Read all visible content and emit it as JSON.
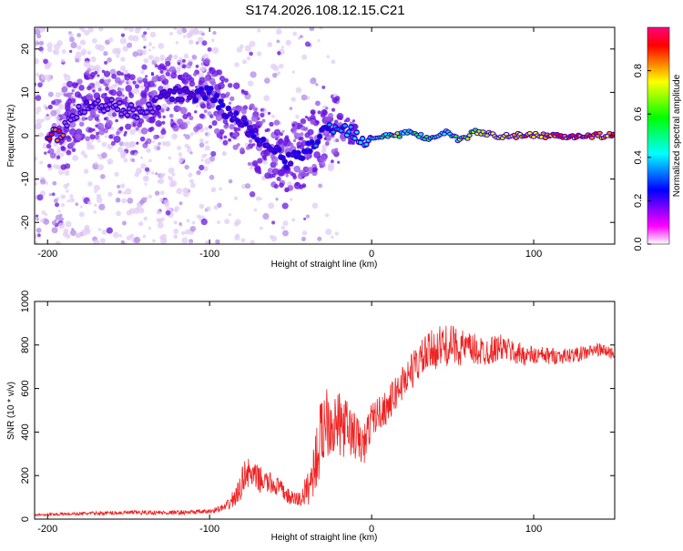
{
  "title": "S174.2026.108.12.15.C21",
  "chart_data": [
    {
      "type": "heatmap",
      "name": "spectrogram",
      "xlabel": "Height of straight line (km)",
      "ylabel": "Frequency (Hz)",
      "xlim": [
        -208,
        150
      ],
      "ylim": [
        -25,
        25
      ],
      "xticks": [
        -200,
        -100,
        0,
        100
      ],
      "xtick_labels": [
        "-200",
        "-100",
        "0",
        "100"
      ],
      "yticks": [
        -20,
        -10,
        0,
        10,
        20
      ],
      "ytick_labels": [
        "-20",
        "-10",
        "0",
        "10",
        "20"
      ],
      "colorbar": {
        "label": "Normalized spectral amplitude",
        "range": [
          0,
          1
        ],
        "ticks": [
          0.0,
          0.2,
          0.4,
          0.6,
          0.8
        ],
        "tick_labels": [
          "0.0",
          "0.2",
          "0.4",
          "0.6",
          "0.8"
        ],
        "colormap": [
          "#ffffff",
          "#e0c8f8",
          "#a060e8",
          "#5a0ad8",
          "#0000ff",
          "#00a8ff",
          "#00ffff",
          "#00ff40",
          "#b0ff00",
          "#ffff00",
          "#ff8000",
          "#ff0000",
          "#ff00a0"
        ]
      },
      "ridge": [
        {
          "x": -190,
          "y": 3,
          "amp": 0.12
        },
        {
          "x": -175,
          "y": 7,
          "amp": 0.18
        },
        {
          "x": -160,
          "y": 7,
          "amp": 0.16
        },
        {
          "x": -140,
          "y": 5,
          "amp": 0.15
        },
        {
          "x": -125,
          "y": 10,
          "amp": 0.22
        },
        {
          "x": -110,
          "y": 9,
          "amp": 0.28
        },
        {
          "x": -100,
          "y": 10,
          "amp": 0.3
        },
        {
          "x": -92,
          "y": 6,
          "amp": 0.3
        },
        {
          "x": -82,
          "y": 4,
          "amp": 0.3
        },
        {
          "x": -72,
          "y": 0,
          "amp": 0.28
        },
        {
          "x": -62,
          "y": -3,
          "amp": 0.28
        },
        {
          "x": -52,
          "y": -6,
          "amp": 0.3
        },
        {
          "x": -42,
          "y": -4,
          "amp": 0.32
        },
        {
          "x": -32,
          "y": 0,
          "amp": 0.35
        },
        {
          "x": -22,
          "y": 2,
          "amp": 0.4
        },
        {
          "x": -12,
          "y": 1,
          "amp": 0.45
        },
        {
          "x": -5,
          "y": -1,
          "amp": 0.5
        },
        {
          "x": 5,
          "y": 0,
          "amp": 0.6
        },
        {
          "x": 15,
          "y": 0,
          "amp": 0.62
        },
        {
          "x": 25,
          "y": 1,
          "amp": 0.55
        },
        {
          "x": 35,
          "y": -1,
          "amp": 0.58
        },
        {
          "x": 45,
          "y": 1,
          "amp": 0.55
        },
        {
          "x": 55,
          "y": -1,
          "amp": 0.6
        },
        {
          "x": 65,
          "y": 1,
          "amp": 0.7
        },
        {
          "x": 75,
          "y": 0,
          "amp": 0.75
        },
        {
          "x": 85,
          "y": 0,
          "amp": 0.8
        },
        {
          "x": 95,
          "y": 0,
          "amp": 0.85
        },
        {
          "x": 105,
          "y": 0,
          "amp": 0.85
        },
        {
          "x": 115,
          "y": 0,
          "amp": 0.9
        },
        {
          "x": 125,
          "y": 0,
          "amp": 0.9
        },
        {
          "x": 135,
          "y": 0,
          "amp": 0.95
        },
        {
          "x": 150,
          "y": 0,
          "amp": 0.95
        }
      ]
    },
    {
      "type": "line",
      "name": "snr",
      "xlabel": "Height of straight line (km)",
      "ylabel": "SNR (10 * v/v)",
      "xlim": [
        -208,
        150
      ],
      "ylim": [
        0,
        1000
      ],
      "xticks": [
        -200,
        -100,
        0,
        100
      ],
      "xtick_labels": [
        "-200",
        "-100",
        "0",
        "100"
      ],
      "yticks": [
        0,
        200,
        400,
        600,
        800,
        1000
      ],
      "ytick_labels": [
        "0",
        "200",
        "400",
        "600",
        "800",
        "1000"
      ],
      "color": "#ee2222",
      "x": [
        -208,
        -180,
        -150,
        -120,
        -100,
        -90,
        -82,
        -78,
        -72,
        -65,
        -58,
        -50,
        -44,
        -38,
        -33,
        -28,
        -24,
        -20,
        -15,
        -10,
        -5,
        0,
        10,
        20,
        30,
        40,
        50,
        60,
        70,
        80,
        90,
        100,
        110,
        120,
        130,
        140,
        150
      ],
      "y": [
        20,
        25,
        30,
        30,
        35,
        55,
        120,
        220,
        190,
        170,
        150,
        95,
        90,
        160,
        320,
        480,
        440,
        430,
        420,
        380,
        330,
        460,
        520,
        640,
        730,
        790,
        800,
        780,
        770,
        790,
        760,
        750,
        750,
        750,
        760,
        780,
        760
      ],
      "noise": [
        5,
        8,
        10,
        10,
        10,
        20,
        60,
        70,
        65,
        55,
        45,
        35,
        40,
        90,
        170,
        190,
        160,
        150,
        130,
        110,
        100,
        80,
        80,
        85,
        90,
        100,
        90,
        80,
        70,
        60,
        55,
        45,
        40,
        35,
        35,
        30,
        30
      ]
    }
  ]
}
